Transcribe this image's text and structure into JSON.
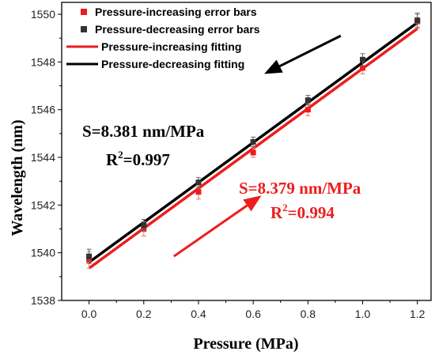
{
  "chart_data": {
    "type": "scatter",
    "xlabel": "Pressure (MPa)",
    "ylabel": "Wavelength (nm)",
    "xlim": [
      -0.1,
      1.25
    ],
    "ylim": [
      1538,
      1550.5
    ],
    "xticks": [
      0.0,
      0.2,
      0.4,
      0.6,
      0.8,
      1.0,
      1.2
    ],
    "xtick_labels": [
      "0.0",
      "0.2",
      "0.4",
      "0.6",
      "0.8",
      "1.0",
      "1.2"
    ],
    "yticks": [
      1538,
      1540,
      1542,
      1544,
      1546,
      1548,
      1550
    ],
    "ytick_labels": [
      "1538",
      "1540",
      "1542",
      "1544",
      "1546",
      "1548",
      "1550"
    ],
    "legend_position": "top-left",
    "grid": false,
    "series": [
      {
        "name": "Pressure-increasing error bars",
        "kind": "points",
        "color": "#ee1c1c",
        "x": [
          0.0,
          0.2,
          0.4,
          0.6,
          0.8,
          1.0,
          1.2
        ],
        "y": [
          1539.7,
          1541.0,
          1542.55,
          1544.2,
          1546.0,
          1547.75,
          1549.7
        ],
        "err": [
          0.35,
          0.3,
          0.3,
          0.2,
          0.25,
          0.25,
          0.3
        ]
      },
      {
        "name": "Pressure-decreasing error bars",
        "kind": "points",
        "color": "#333333",
        "x": [
          0.0,
          0.2,
          0.4,
          0.6,
          0.8,
          1.0,
          1.2
        ],
        "y": [
          1539.85,
          1541.15,
          1542.95,
          1544.65,
          1546.4,
          1548.1,
          1549.75
        ],
        "err": [
          0.3,
          0.25,
          0.2,
          0.2,
          0.2,
          0.25,
          0.3
        ]
      },
      {
        "name": "Pressure-increasing fitting",
        "kind": "line",
        "color": "#ee1c1c",
        "x": [
          0.0,
          1.2
        ],
        "y": [
          1539.35,
          1549.4
        ]
      },
      {
        "name": "Pressure-decreasing fitting",
        "kind": "line",
        "color": "#000000",
        "x": [
          0.0,
          1.2
        ],
        "y": [
          1539.6,
          1549.65
        ]
      }
    ],
    "annotations": {
      "decreasing_slope": "S=8.381 nm/MPa",
      "decreasing_r2_prefix": "R",
      "decreasing_r2_sup": "2",
      "decreasing_r2_value": "=0.997",
      "increasing_slope": "S=8.379 nm/MPa",
      "increasing_r2_prefix": "R",
      "increasing_r2_sup": "2",
      "increasing_r2_value": "=0.994"
    },
    "arrows": [
      {
        "direction": "down-left",
        "color": "#000000",
        "from": [
          0.92,
          1549.1
        ],
        "to": [
          0.64,
          1547.5
        ]
      },
      {
        "direction": "up-right",
        "color": "#ee1c1c",
        "from": [
          0.31,
          1539.85
        ],
        "to": [
          0.63,
          1542.4
        ]
      }
    ]
  }
}
